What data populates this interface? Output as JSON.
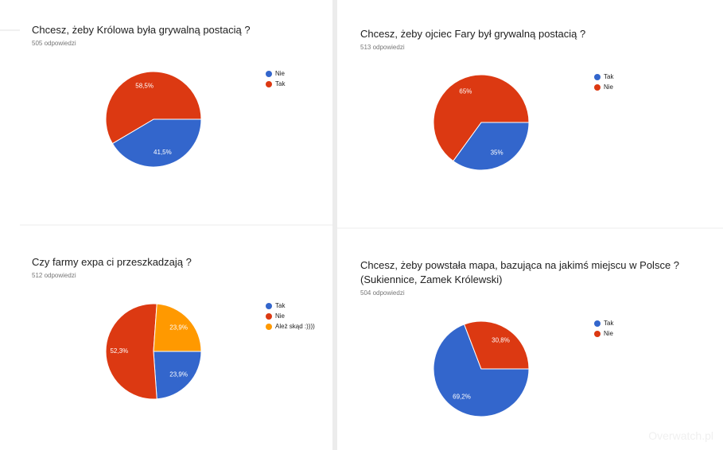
{
  "chart_data": [
    {
      "type": "pie",
      "title": "Chcesz, żeby Królowa była grywalną postacią ?",
      "subtitle": "505 odpowiedzi",
      "categories": [
        "Nie",
        "Tak"
      ],
      "values": [
        41.5,
        58.5
      ],
      "value_labels": [
        "41,5%",
        "58,5%"
      ],
      "colors": [
        "#3366cc",
        "#dc3912"
      ]
    },
    {
      "type": "pie",
      "title": "Chcesz, żeby ojciec Fary był grywalną postacią ?",
      "subtitle": "513 odpowiedzi",
      "categories": [
        "Tak",
        "Nie"
      ],
      "values": [
        35,
        65
      ],
      "value_labels": [
        "35%",
        "65%"
      ],
      "colors": [
        "#3366cc",
        "#dc3912"
      ]
    },
    {
      "type": "pie",
      "title": "Czy farmy expa ci przeszkadzają ?",
      "subtitle": "512 odpowiedzi",
      "categories": [
        "Tak",
        "Nie",
        "Ależ skąd :))))"
      ],
      "values": [
        23.9,
        52.3,
        23.9
      ],
      "value_labels": [
        "23,9%",
        "52,3%",
        "23,9%"
      ],
      "colors": [
        "#3366cc",
        "#dc3912",
        "#ff9900"
      ]
    },
    {
      "type": "pie",
      "title": "Chcesz, żeby powstała mapa, bazująca na jakimś miejscu w Polsce ? (Sukiennice, Zamek Królewski)",
      "subtitle": "504 odpowiedzi",
      "categories": [
        "Tak",
        "Nie"
      ],
      "values": [
        69.2,
        30.8
      ],
      "value_labels": [
        "69,2%",
        "30,8%"
      ],
      "colors": [
        "#3366cc",
        "#dc3912"
      ]
    }
  ],
  "watermark": "Overwatch.pl"
}
